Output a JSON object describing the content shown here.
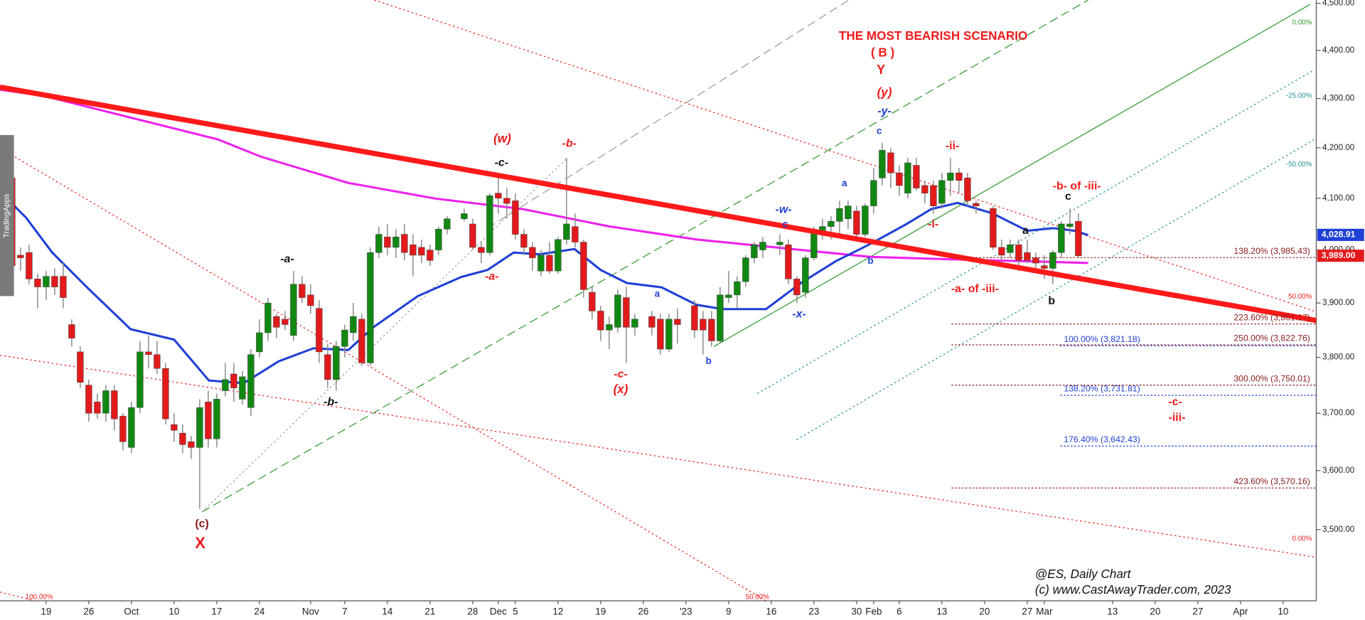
{
  "chart_data": {
    "type": "candlestick",
    "log_scale": true,
    "ylim": [
      3383,
      4507
    ],
    "yticks": [
      {
        "value": 4500,
        "label": "4,500.00"
      },
      {
        "value": 4400,
        "label": "4,400.00"
      },
      {
        "value": 4300,
        "label": "4,300.00"
      },
      {
        "value": 4200,
        "label": "4,200.00"
      },
      {
        "value": 4100,
        "label": "4,100.00"
      },
      {
        "value": 4000,
        "label": "4,000.00"
      },
      {
        "value": 3900,
        "label": "3,900.00"
      },
      {
        "value": 3800,
        "label": "3,800.00"
      },
      {
        "value": 3700,
        "label": "3,700.00"
      },
      {
        "value": 3600,
        "label": "3,600.00"
      },
      {
        "value": 3500,
        "label": "3,500.00"
      }
    ],
    "up_color": "#118811",
    "down_color": "#e31a1c",
    "categories": [
      null,
      null,
      null,
      null,
      null,
      "19",
      null,
      null,
      null,
      null,
      "26",
      null,
      null,
      null,
      null,
      "Oct",
      null,
      null,
      null,
      null,
      "10",
      null,
      null,
      null,
      null,
      "17",
      null,
      null,
      null,
      null,
      "24",
      null,
      null,
      null,
      null,
      null,
      "Nov",
      null,
      null,
      null,
      "7",
      null,
      null,
      null,
      null,
      "14",
      null,
      null,
      null,
      null,
      "21",
      null,
      null,
      null,
      null,
      "28",
      null,
      null,
      "Dec",
      null,
      "5",
      null,
      null,
      null,
      null,
      "12",
      null,
      null,
      null,
      null,
      "19",
      null,
      null,
      null,
      null,
      "26",
      null,
      null,
      null,
      null,
      "'23",
      null,
      null,
      null,
      null,
      "9",
      null,
      null,
      null,
      null,
      "16",
      null,
      null,
      null,
      null,
      "23",
      null,
      null,
      null,
      null,
      "30",
      null,
      "Feb",
      null,
      null,
      "6",
      null,
      null,
      null,
      null,
      "13",
      null,
      null,
      null,
      null,
      "20",
      null,
      null,
      null,
      null,
      "27",
      null,
      "Mar",
      null,
      null,
      null,
      null,
      null,
      null,
      null,
      "13",
      null,
      null,
      null,
      null,
      "20",
      null,
      null,
      null,
      null,
      "27",
      null,
      null,
      null,
      null,
      "Apr",
      null,
      null,
      null,
      null,
      "10"
    ],
    "open": [
      4080,
      4140,
      3990,
      3995,
      3945,
      3930,
      3950,
      3950,
      3860,
      3810,
      3750,
      3720,
      3700,
      3740,
      3695,
      3640,
      3710,
      3810,
      3805,
      3780,
      3680,
      3665,
      3650,
      3640,
      3720,
      3655,
      3740,
      3770,
      3725,
      3710,
      3810,
      3845,
      3875,
      3870,
      3840,
      3935,
      3915,
      3890,
      3805,
      3760,
      3820,
      3845,
      3870,
      3790,
      3995,
      4025,
      4005,
      4030,
      4010,
      4005,
      4000,
      4000,
      4040,
      null,
      4060,
      4050,
      4005,
      3995,
      4110,
      4100,
      4095,
      4030,
      4005,
      3960,
      3990,
      3960,
      4020,
      4045,
      4015,
      3920,
      3885,
      3850,
      3855,
      3910,
      3855,
      null,
      3875,
      3870,
      3815,
      3870,
      null,
      3895,
      3870,
      3870,
      3830,
      3910,
      3915,
      3940,
      3985,
      4000,
      null,
      4010,
      4010,
      3945,
      3920,
      3985,
      4035,
      4045,
      4055,
      4060,
      4075,
      4030,
      4085,
      4140,
      4190,
      4150,
      4110,
      4165,
      4125,
      4125,
      4090,
      4135,
      4150,
      4140,
      4090,
      null,
      4080,
      4005,
      3995,
      4010,
      3995,
      3985,
      3970,
      3965,
      3995,
      4045,
      4055,
      null,
      null,
      null,
      null,
      null,
      null,
      null,
      null,
      null,
      null,
      null,
      null,
      null,
      null,
      null,
      null,
      null,
      null,
      null,
      null,
      null,
      null,
      null,
      null
    ],
    "high": [
      4150,
      4210,
      4005,
      4010,
      3955,
      3960,
      3965,
      3975,
      3870,
      3820,
      3760,
      3735,
      3750,
      3750,
      3700,
      3720,
      3830,
      3840,
      3830,
      3790,
      3700,
      3680,
      3660,
      3725,
      3740,
      3735,
      3790,
      3790,
      3775,
      3815,
      3870,
      3910,
      3880,
      3885,
      3960,
      3950,
      3935,
      3905,
      3825,
      3830,
      3860,
      3900,
      3880,
      4005,
      4045,
      4050,
      4040,
      4050,
      4030,
      4020,
      4010,
      4045,
      4065,
      null,
      4080,
      4060,
      4015,
      4110,
      4145,
      4120,
      4110,
      4040,
      4015,
      4000,
      4015,
      4025,
      4180,
      4070,
      4020,
      3930,
      3895,
      3875,
      3925,
      3930,
      3880,
      null,
      3885,
      3880,
      3880,
      3890,
      null,
      3905,
      3885,
      3885,
      3930,
      3960,
      3950,
      3990,
      4015,
      4025,
      null,
      4030,
      4020,
      3950,
      3990,
      4045,
      4060,
      4065,
      4095,
      4095,
      4085,
      4090,
      4160,
      4210,
      4200,
      4165,
      4180,
      4180,
      4135,
      4135,
      4150,
      4180,
      4160,
      4150,
      4095,
      null,
      4085,
      4020,
      4020,
      4020,
      4020,
      3995,
      3990,
      4000,
      4055,
      4080,
      4070,
      null,
      null,
      null,
      null,
      null,
      null,
      null,
      null,
      null,
      null,
      null,
      null,
      null,
      null,
      null,
      null,
      null,
      null,
      null,
      null,
      null,
      null,
      null,
      null
    ],
    "low": [
      4060,
      3960,
      3960,
      3935,
      3890,
      3905,
      3915,
      3890,
      3820,
      3745,
      3685,
      3690,
      3685,
      3670,
      3635,
      3630,
      3700,
      3780,
      3770,
      3680,
      3650,
      3630,
      3620,
      3535,
      3640,
      3640,
      3730,
      3720,
      3715,
      3695,
      3800,
      3830,
      3835,
      3850,
      3830,
      3900,
      3880,
      3790,
      3745,
      3740,
      3800,
      3830,
      3785,
      3785,
      3985,
      3990,
      3985,
      3980,
      3950,
      3975,
      3970,
      3990,
      4030,
      null,
      4055,
      4000,
      3975,
      3990,
      4070,
      4060,
      4020,
      3990,
      3960,
      3950,
      3955,
      3955,
      4010,
      4005,
      3910,
      3870,
      3830,
      3815,
      3845,
      3790,
      3840,
      null,
      3840,
      3805,
      3810,
      3825,
      null,
      3835,
      3805,
      3820,
      3825,
      3900,
      3890,
      3930,
      3975,
      3985,
      null,
      3990,
      3935,
      3900,
      3910,
      3980,
      4020,
      4020,
      4030,
      4040,
      4020,
      4025,
      4070,
      4125,
      4120,
      4105,
      4100,
      4115,
      4090,
      4070,
      4080,
      4105,
      4110,
      4085,
      4070,
      null,
      4000,
      3980,
      3985,
      3960,
      3975,
      3965,
      3945,
      3935,
      3985,
      4030,
      3985,
      null,
      null,
      null,
      null,
      null,
      null,
      null,
      null,
      null,
      null,
      null,
      null,
      null,
      null,
      null,
      null,
      null,
      null,
      null,
      null,
      null,
      null,
      null,
      null
    ],
    "close": [
      4120,
      3970,
      3985,
      3945,
      3930,
      3950,
      3930,
      3910,
      3835,
      3755,
      3700,
      3700,
      3740,
      3690,
      3650,
      3710,
      3810,
      3805,
      3780,
      3690,
      3670,
      3645,
      3640,
      3710,
      3655,
      3725,
      3760,
      3745,
      3765,
      3805,
      3845,
      3900,
      3855,
      3860,
      3935,
      3910,
      3895,
      3810,
      3760,
      3820,
      3850,
      3875,
      3790,
      3995,
      4030,
      4005,
      4025,
      3995,
      3990,
      3990,
      3980,
      4040,
      4060,
      null,
      4070,
      4005,
      3995,
      4105,
      4100,
      4090,
      4030,
      4005,
      3985,
      3990,
      3960,
      4020,
      4050,
      4015,
      3925,
      3885,
      3850,
      3860,
      3915,
      3855,
      3870,
      null,
      3855,
      3815,
      3870,
      3860,
      null,
      3850,
      3850,
      3830,
      3915,
      3915,
      3940,
      3985,
      4010,
      4015,
      null,
      4015,
      3945,
      3915,
      3985,
      4035,
      4045,
      4055,
      4080,
      4085,
      4030,
      4085,
      4135,
      4195,
      4150,
      4125,
      4170,
      4120,
      4110,
      4085,
      4135,
      4150,
      4135,
      4095,
      4085,
      null,
      4005,
      3990,
      4010,
      3980,
      3980,
      3975,
      3965,
      3995,
      4050,
      4050,
      3989,
      null,
      null,
      null,
      null,
      null,
      null,
      null,
      null,
      null,
      null,
      null,
      null,
      null,
      null,
      null,
      null,
      null,
      null,
      null,
      null,
      null,
      null,
      null,
      null
    ],
    "price_tags": [
      {
        "value": 4028.91,
        "label": "4,028.91",
        "color": "#1f3fd6"
      },
      {
        "value": 3989,
        "label": "3,989.00",
        "color": "#e31a1c"
      }
    ],
    "levels": [
      {
        "value": 3985.43,
        "label": "138.20% (3,985.43)",
        "color": "#8b1a1a"
      },
      {
        "value": 3861.17,
        "label": "223.60% (3,861.17)",
        "color": "#8b1a1a"
      },
      {
        "value": 3821.18,
        "label": "100.00% (3,821.18)",
        "color": "#1f3fd6"
      },
      {
        "value": 3822.76,
        "label": "250.00% (3,822.76)",
        "color": "#8b1a1a"
      },
      {
        "value": 3731.81,
        "label": "138.20% (3,731.81)",
        "color": "#1f3fd6"
      },
      {
        "value": 3750.01,
        "label": "300.00% (3,750.01)",
        "color": "#8b1a1a"
      },
      {
        "value": 3642.43,
        "label": "176.40% (3,642.43)",
        "color": "#1f3fd6"
      },
      {
        "value": 3570.16,
        "label": "423.60% (3,570.16)",
        "color": "#8b1a1a"
      }
    ],
    "annotations": [
      {
        "text": "THE MOST BEARISH SCENARIO",
        "color": "#ee1c1c"
      },
      {
        "text": "( B )",
        "color": "#ee1c1c"
      },
      {
        "text": "Y",
        "color": "#ee1c1c"
      },
      {
        "text": "(y)",
        "color": "#ee1c1c"
      },
      {
        "text": "-y-",
        "color": "#1f3fd6"
      },
      {
        "text": "c",
        "color": "#1f3fd6"
      },
      {
        "text": "a",
        "color": "#1f3fd6"
      },
      {
        "text": "b",
        "color": "#1f3fd6"
      },
      {
        "text": "-w-",
        "color": "#1f3fd6"
      },
      {
        "text": "c",
        "color": "#1f3fd6"
      },
      {
        "text": "-x-",
        "color": "#1f3fd6"
      },
      {
        "text": "a",
        "color": "#1f3fd6"
      },
      {
        "text": "b",
        "color": "#1f3fd6"
      },
      {
        "text": "(w)",
        "color": "#ee1c1c"
      },
      {
        "text": "-b-",
        "color": "#ee1c1c"
      },
      {
        "text": "-c-",
        "color": "#111111"
      },
      {
        "text": "-a-",
        "color": "#ee1c1c"
      },
      {
        "text": "-c-",
        "color": "#ee1c1c"
      },
      {
        "text": "(x)",
        "color": "#ee1c1c"
      },
      {
        "text": "-a-",
        "color": "#111111"
      },
      {
        "text": "-b-",
        "color": "#111111"
      },
      {
        "text": "(c)",
        "color": "#8b1a1a"
      },
      {
        "text": "X",
        "color": "#ee1c1c"
      },
      {
        "text": "-ii-",
        "color": "#ee1c1c"
      },
      {
        "text": "-i-",
        "color": "#ee1c1c"
      },
      {
        "text": "-b- of -iii-",
        "color": "#ee1c1c"
      },
      {
        "text": "c",
        "color": "#111111"
      },
      {
        "text": "a",
        "color": "#111111"
      },
      {
        "text": "b",
        "color": "#111111"
      },
      {
        "text": "-a- of -iii-",
        "color": "#ee1c1c"
      },
      {
        "text": "-c-",
        "color": "#ee1c1c"
      },
      {
        "text": "-iii-",
        "color": "#ee1c1c"
      },
      {
        "text": "@ES,  Daily Chart",
        "color": "#111111"
      },
      {
        "text": "(c) www.CastAwayTrader.com, 2023",
        "color": "#111111"
      },
      {
        "text": "0.00%",
        "color": "#2e9a2e"
      },
      {
        "text": "-25.00%",
        "color": "#1f8f8f"
      },
      {
        "text": "-50.00%",
        "color": "#1f8f8f"
      },
      {
        "text": "50.00%",
        "color": "#ee1c1c"
      },
      {
        "text": "0.00%",
        "color": "#ee1c1c"
      },
      {
        "text": "100.00%",
        "color": "#ee1c1c"
      },
      {
        "text": "50.00%",
        "color": "#ee1c1c"
      }
    ],
    "side_tab": "TradingApps"
  }
}
